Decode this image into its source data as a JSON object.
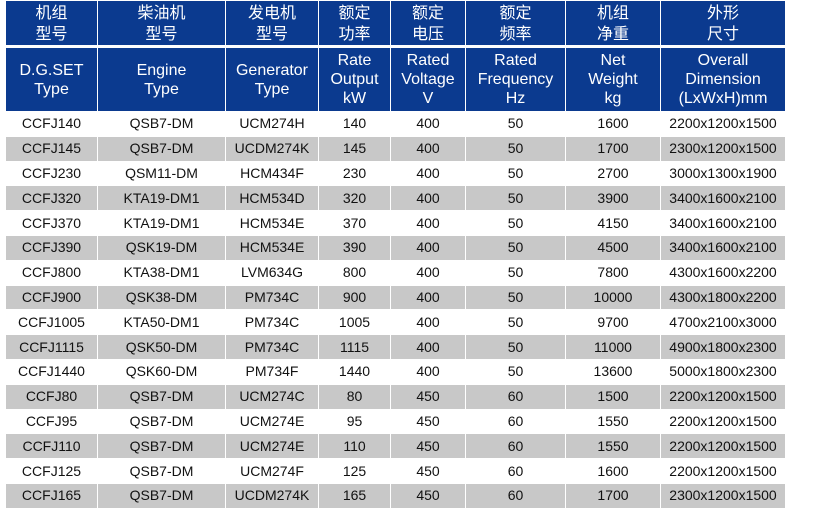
{
  "table": {
    "header_cn": [
      "机组\n型号",
      "柴油机\n型号",
      "发电机\n型号",
      "额定\n功率",
      "额定\n电压",
      "额定\n频率",
      "机组\n净重",
      "外形\n尺寸"
    ],
    "header_en": [
      "D.G.SET\nType",
      "Engine\nType",
      "Generator\nType",
      "Rate\nOutput\nkW",
      "Rated\nVoltage\nV",
      "Rated\nFrequency\nHz",
      "Net\nWeight\nkg",
      "Overall\nDimension\n(LxWxH)mm"
    ],
    "rows": [
      [
        "CCFJ140",
        "QSB7-DM",
        "UCM274H",
        "140",
        "400",
        "50",
        "1600",
        "2200x1200x1500"
      ],
      [
        "CCFJ145",
        "QSB7-DM",
        "UCDM274K",
        "145",
        "400",
        "50",
        "1700",
        "2300x1200x1500"
      ],
      [
        "CCFJ230",
        "QSM11-DM",
        "HCM434F",
        "230",
        "400",
        "50",
        "2700",
        "3000x1300x1900"
      ],
      [
        "CCFJ320",
        "KTA19-DM1",
        "HCM534D",
        "320",
        "400",
        "50",
        "3900",
        "3400x1600x2100"
      ],
      [
        "CCFJ370",
        "KTA19-DM1",
        "HCM534E",
        "370",
        "400",
        "50",
        "4150",
        "3400x1600x2100"
      ],
      [
        "CCFJ390",
        "QSK19-DM",
        "HCM534E",
        "390",
        "400",
        "50",
        "4500",
        "3400x1600x2100"
      ],
      [
        "CCFJ800",
        "KTA38-DM1",
        "LVM634G",
        "800",
        "400",
        "50",
        "7800",
        "4300x1600x2200"
      ],
      [
        "CCFJ900",
        "QSK38-DM",
        "PM734C",
        "900",
        "400",
        "50",
        "10000",
        "4300x1800x2200"
      ],
      [
        "CCFJ1005",
        "KTA50-DM1",
        "PM734C",
        "1005",
        "400",
        "50",
        "9700",
        "4700x2100x3000"
      ],
      [
        "CCFJ1115",
        "QSK50-DM",
        "PM734C",
        "1115",
        "400",
        "50",
        "11000",
        "4900x1800x2300"
      ],
      [
        "CCFJ1440",
        "QSK60-DM",
        "PM734F",
        "1440",
        "400",
        "50",
        "13600",
        "5000x1800x2300"
      ],
      [
        "CCFJ80",
        "QSB7-DM",
        "UCM274C",
        "80",
        "450",
        "60",
        "1500",
        "2200x1200x1500"
      ],
      [
        "CCFJ95",
        "QSB7-DM",
        "UCM274E",
        "95",
        "450",
        "60",
        "1550",
        "2200x1200x1500"
      ],
      [
        "CCFJ110",
        "QSB7-DM",
        "UCM274E",
        "110",
        "450",
        "60",
        "1550",
        "2200x1200x1500"
      ],
      [
        "CCFJ125",
        "QSB7-DM",
        "UCM274F",
        "125",
        "450",
        "60",
        "1600",
        "2200x1200x1500"
      ],
      [
        "CCFJ165",
        "QSB7-DM",
        "UCDM274K",
        "165",
        "450",
        "60",
        "1700",
        "2300x1200x1500"
      ]
    ]
  }
}
